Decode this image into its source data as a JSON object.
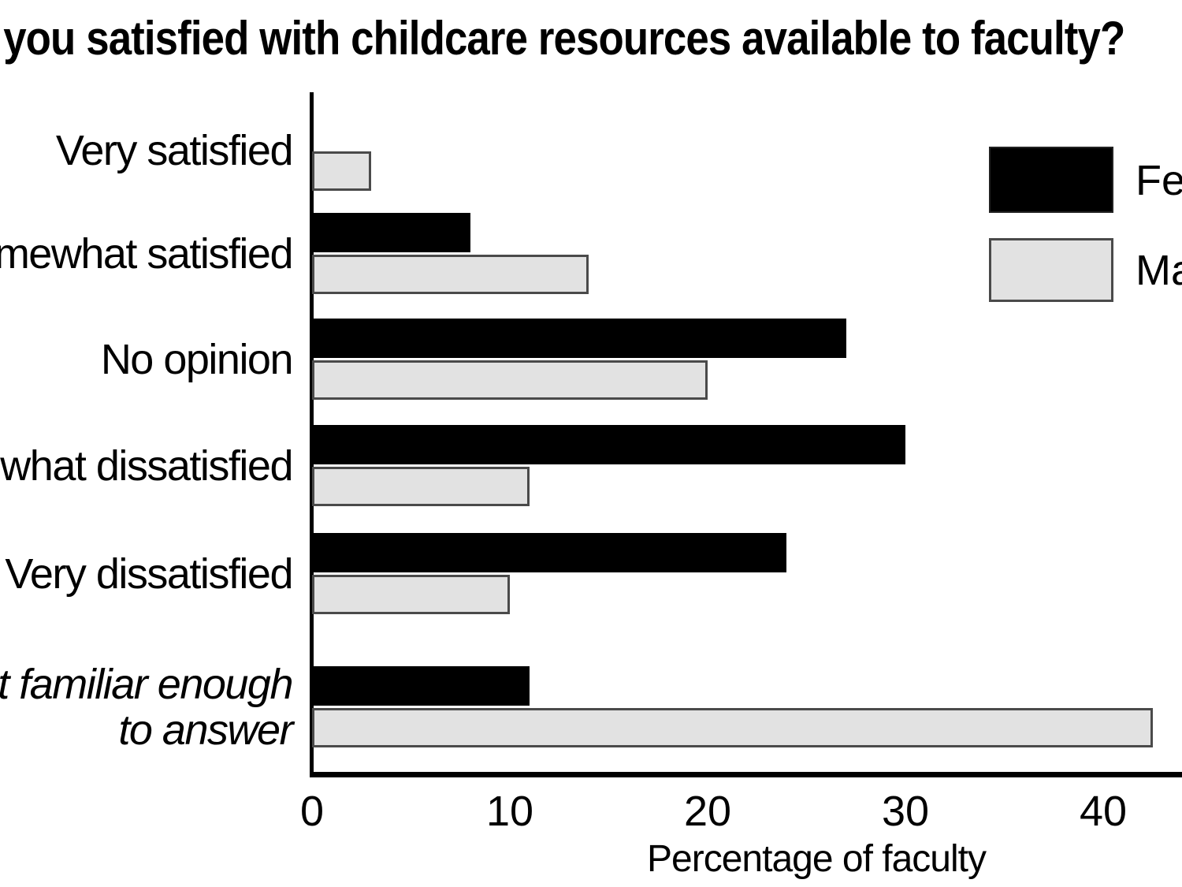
{
  "title": "Are you satisfied with childcare resources available to faculty?",
  "chart_data": {
    "type": "bar",
    "orientation": "horizontal",
    "title": "Are you satisfied with childcare resources available to faculty?",
    "xlabel": "Percentage of faculty",
    "ylabel": "",
    "xlim": [
      0,
      44
    ],
    "x_ticks": [
      0,
      10,
      20,
      30,
      40
    ],
    "grid": false,
    "legend_position": "upper right",
    "categories": [
      "Very satisfied",
      "Somewhat satisfied",
      "No opinion",
      "Somewhat dissatisfied",
      "Very dissatisfied",
      "Not familiar enough to answer"
    ],
    "series": [
      {
        "name": "Female",
        "color": "#000000",
        "values": [
          0,
          8,
          27,
          30,
          24,
          11
        ]
      },
      {
        "name": "Male",
        "color": "#e2e2e2",
        "values": [
          3,
          14,
          20,
          11,
          10,
          42.5
        ]
      }
    ]
  },
  "colors": {
    "female_bar": "#000000",
    "male_bar": "#e2e2e2",
    "male_bar_border": "#4a4a4a",
    "axis": "#000000",
    "background": "#ffffff"
  }
}
